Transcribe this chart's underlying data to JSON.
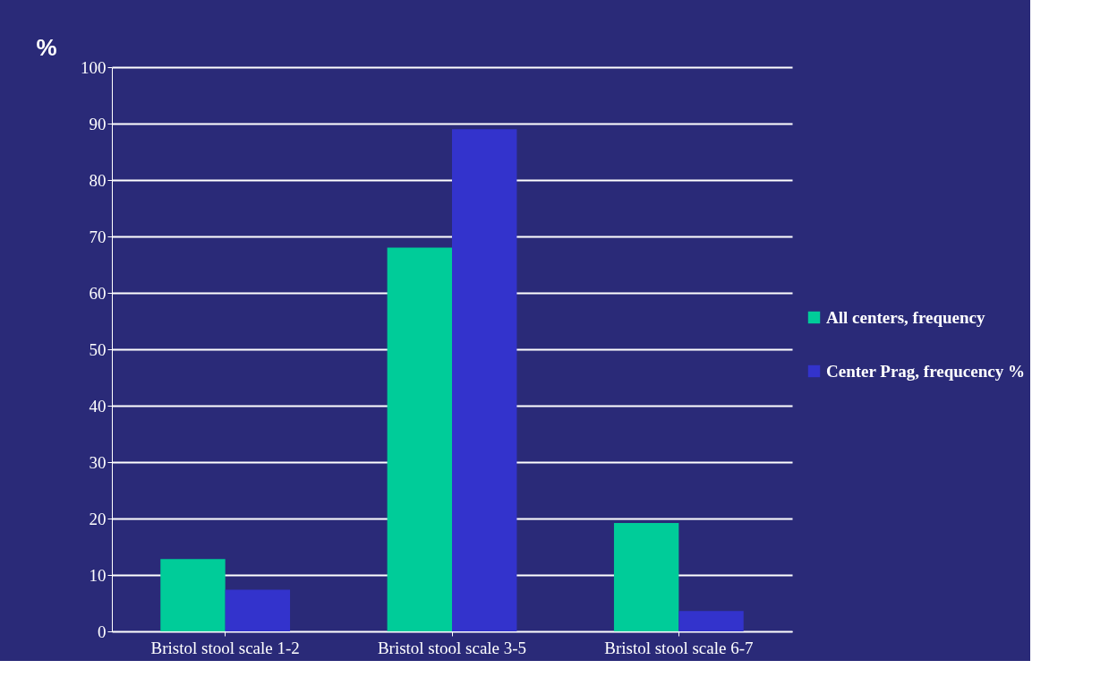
{
  "chart_data": {
    "type": "bar",
    "ylabel": "%",
    "categories": [
      "Bristol stool scale 1-2",
      "Bristol stool scale 3-5",
      "Bristol stool scale 6-7"
    ],
    "series": [
      {
        "name": "All centers, frequency",
        "color": "#00cc99",
        "values": [
          12.8,
          68,
          19.2
        ]
      },
      {
        "name": "Center Prag, frequcency %",
        "color": "#3333cc",
        "values": [
          7.4,
          89,
          3.6
        ]
      }
    ],
    "ylim": [
      0,
      100
    ],
    "yticks": [
      0,
      10,
      20,
      30,
      40,
      50,
      60,
      70,
      80,
      90,
      100
    ],
    "grid": "y",
    "legend": "right"
  }
}
